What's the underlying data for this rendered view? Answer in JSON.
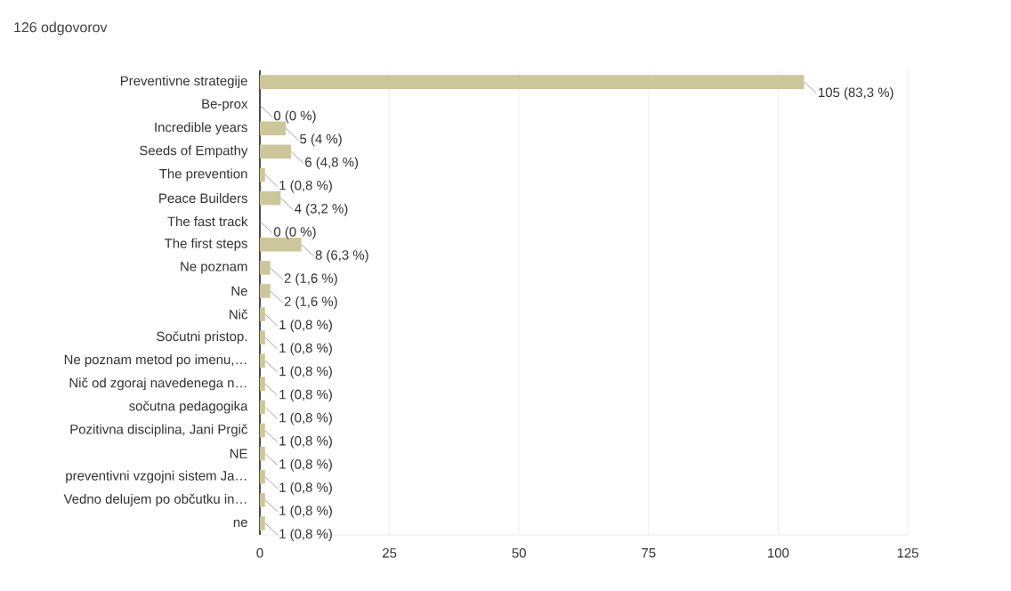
{
  "chart_data": {
    "type": "bar",
    "orientation": "horizontal",
    "title": "126 odgovorov",
    "categories": [
      "Preventivne strategije",
      "Be-prox",
      "Incredible years",
      "Seeds of Empathy",
      "The prevention",
      "Peace Builders",
      "The fast track",
      "The first steps",
      "Ne poznam",
      "Ne",
      "Nič",
      "Sočutni pristop.",
      "Ne poznam metod po imenu,…",
      "Nič od zgoraj navedenega n…",
      "sočutna pedagogika",
      "Pozitivna disciplina, Jani Prgič",
      "NE",
      "preventivni vzgojni sistem Ja…",
      "Vedno delujem po občutku in…",
      "ne"
    ],
    "values": [
      105,
      0,
      5,
      6,
      1,
      4,
      0,
      8,
      2,
      2,
      1,
      1,
      1,
      1,
      1,
      1,
      1,
      1,
      1,
      1
    ],
    "value_labels": [
      "105 (83,3 %)",
      "0 (0 %)",
      "5 (4 %)",
      "6 (4,8 %)",
      "1 (0,8 %)",
      "4 (3,2 %)",
      "0 (0 %)",
      "8 (6,3 %)",
      "2 (1,6 %)",
      "2 (1,6 %)",
      "1 (0,8 %)",
      "1 (0,8 %)",
      "1 (0,8 %)",
      "1 (0,8 %)",
      "1 (0,8 %)",
      "1 (0,8 %)",
      "1 (0,8 %)",
      "1 (0,8 %)",
      "1 (0,8 %)",
      "1 (0,8 %)"
    ],
    "color": "#ccc79a",
    "xlim": [
      0,
      125
    ],
    "xticks": [
      0,
      25,
      50,
      75,
      100,
      125
    ],
    "grid": "x"
  }
}
